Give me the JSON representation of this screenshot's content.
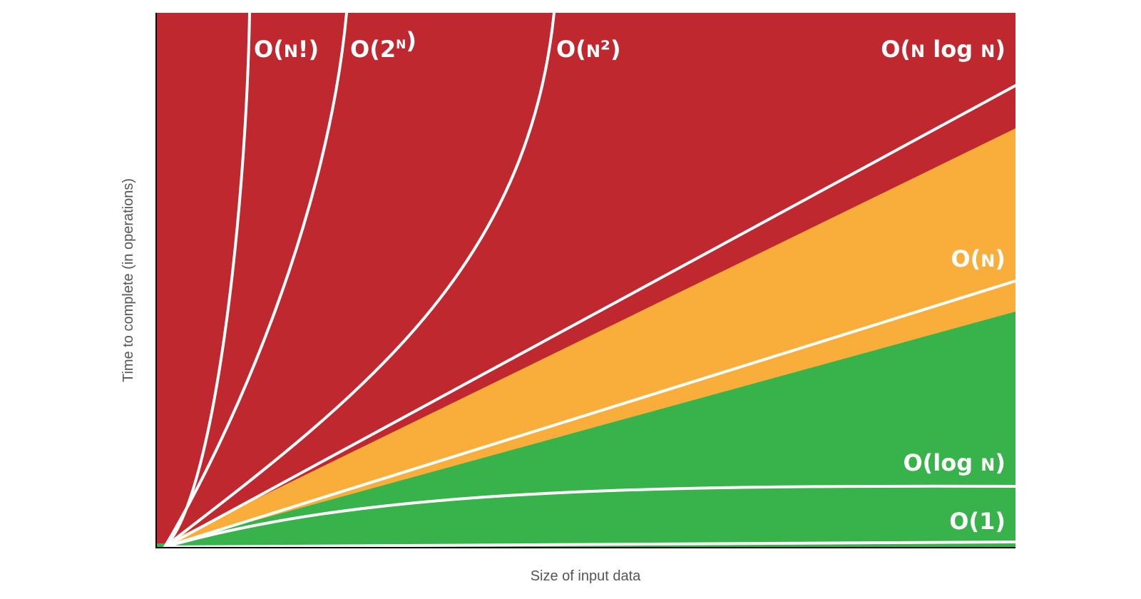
{
  "chart_data": {
    "type": "area",
    "xlabel": "Size of input data",
    "ylabel": "Time to complete (in operations)",
    "grid": false,
    "legend": "none",
    "zones": [
      {
        "name": "bad",
        "color": "#bf282e"
      },
      {
        "name": "fair",
        "color": "#f9ae3b"
      },
      {
        "name": "good",
        "color": "#38b24a"
      }
    ],
    "curves": [
      {
        "id": "factorial",
        "label": "O(N!)",
        "parts": [
          {
            "t": "O("
          },
          {
            "t": "N",
            "sc": true
          },
          {
            "t": "!)"
          }
        ]
      },
      {
        "id": "exponential",
        "label": "O(2^N)",
        "parts": [
          {
            "t": "O(2"
          },
          {
            "t": "N",
            "sup": true
          },
          {
            "t": ")"
          }
        ]
      },
      {
        "id": "quadratic",
        "label": "O(N²)",
        "parts": [
          {
            "t": "O("
          },
          {
            "t": "N",
            "sc": true
          },
          {
            "t": "²)"
          }
        ]
      },
      {
        "id": "linearithmic",
        "label": "O(N log N)",
        "parts": [
          {
            "t": "O("
          },
          {
            "t": "N",
            "sc": true
          },
          {
            "t": " log "
          },
          {
            "t": "N",
            "sc": true
          },
          {
            "t": ")"
          }
        ]
      },
      {
        "id": "linear",
        "label": "O(N)",
        "parts": [
          {
            "t": "O("
          },
          {
            "t": "N",
            "sc": true
          },
          {
            "t": ")"
          }
        ]
      },
      {
        "id": "logarithmic",
        "label": "O(log N)",
        "parts": [
          {
            "t": "O(log "
          },
          {
            "t": "N",
            "sc": true
          },
          {
            "t": ")"
          }
        ]
      },
      {
        "id": "constant",
        "label": "O(1)",
        "parts": [
          {
            "t": "O(1)"
          }
        ]
      }
    ],
    "line_color": "#ffffff",
    "axis_color": "#000000"
  }
}
